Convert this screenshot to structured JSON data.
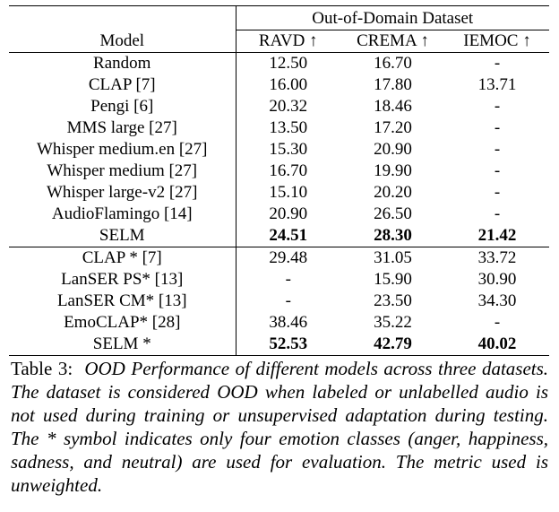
{
  "table": {
    "group_header": "Out-of-Domain Dataset",
    "columns": [
      "Model",
      "RAVD ↑",
      "CREMA ↑",
      "IEMOC ↑"
    ],
    "section1": [
      {
        "model": "Random",
        "ravd": "12.50",
        "crema": "16.70",
        "iemoc": "-"
      },
      {
        "model": "CLAP [7]",
        "ravd": "16.00",
        "crema": "17.80",
        "iemoc": "13.71"
      },
      {
        "model": "Pengi [6]",
        "ravd": "20.32",
        "crema": "18.46",
        "iemoc": "-"
      },
      {
        "model": "MMS large [27]",
        "ravd": "13.50",
        "crema": "17.20",
        "iemoc": "-"
      },
      {
        "model": "Whisper medium.en [27]",
        "ravd": "15.30",
        "crema": "20.90",
        "iemoc": "-"
      },
      {
        "model": "Whisper medium [27]",
        "ravd": "16.70",
        "crema": "19.90",
        "iemoc": "-"
      },
      {
        "model": "Whisper large-v2 [27]",
        "ravd": "15.10",
        "crema": "20.20",
        "iemoc": "-"
      },
      {
        "model": "AudioFlamingo [14]",
        "ravd": "20.90",
        "crema": "26.50",
        "iemoc": "-"
      },
      {
        "model": "SELM",
        "ravd": "24.51",
        "crema": "28.30",
        "iemoc": "21.42"
      }
    ],
    "section2": [
      {
        "model": "CLAP * [7]",
        "ravd": "29.48",
        "crema": "31.05",
        "iemoc": "33.72"
      },
      {
        "model": "LanSER PS* [13]",
        "ravd": "-",
        "crema": "15.90",
        "iemoc": "30.90"
      },
      {
        "model": "LanSER CM* [13]",
        "ravd": "-",
        "crema": "23.50",
        "iemoc": "34.30"
      },
      {
        "model": "EmoCLAP* [28]",
        "ravd": "38.46",
        "crema": "35.22",
        "iemoc": "-"
      },
      {
        "model": "SELM *",
        "ravd": "52.53",
        "crema": "42.79",
        "iemoc": "40.02"
      }
    ]
  },
  "caption": {
    "label": "Table 3:",
    "text": "OOD Performance of different models across three datasets. The dataset is considered OOD when labeled or unlabelled audio is not used during training or unsupervised adaptation during testing. The * symbol indicates only four emotion classes (anger, happiness, sadness, and neutral) are used for evaluation. The metric used is unweighted."
  }
}
